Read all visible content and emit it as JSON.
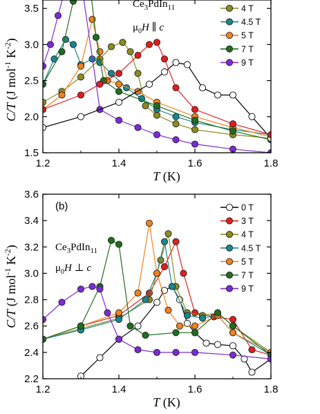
{
  "chart_data": [
    {
      "type": "scatter",
      "panel_label": "",
      "xlabel": "T (K)",
      "ylabel": "C/T (J mol-1 K-2)",
      "xlim": [
        1.2,
        1.8
      ],
      "ylim": [
        1.5,
        4.0
      ],
      "xticks": [
        "1.2",
        "1.4",
        "1.6",
        "1.8"
      ],
      "yticks": [
        "1.5",
        "2.0",
        "2.5",
        "3.0",
        "3.5",
        "4.0"
      ],
      "annotation": {
        "compound": "Ce3PdIn11",
        "field": "μ0H ∥ c"
      },
      "legend_position": "top-right",
      "series": [
        {
          "name": "4 T",
          "color": "#8c8c1e",
          "x": [
            1.2,
            1.25,
            1.3,
            1.35,
            1.38,
            1.41,
            1.43,
            1.45,
            1.47,
            1.5,
            1.55,
            1.6,
            1.7,
            1.8
          ],
          "y": [
            2.2,
            2.35,
            2.55,
            2.8,
            2.97,
            3.03,
            2.9,
            2.6,
            2.15,
            2.02,
            1.9,
            1.82,
            1.75,
            1.7
          ]
        },
        {
          "name": "4.5 T",
          "color": "#16878e",
          "x": [
            1.2,
            1.23,
            1.26,
            1.28,
            1.3,
            1.33,
            1.35,
            1.38,
            1.42,
            1.46,
            1.5,
            1.55,
            1.6,
            1.7,
            1.8
          ],
          "y": [
            2.45,
            2.8,
            3.07,
            3.0,
            2.72,
            2.8,
            2.75,
            2.6,
            2.4,
            2.25,
            2.1,
            2.0,
            1.92,
            1.82,
            1.75
          ]
        },
        {
          "name": "5 T",
          "color": "#f0821e",
          "x": [
            1.2,
            1.25,
            1.3,
            1.33,
            1.35,
            1.37,
            1.4,
            1.45,
            1.5,
            1.6,
            1.7,
            1.8
          ],
          "y": [
            2.1,
            2.3,
            2.7,
            3.35,
            2.9,
            2.5,
            2.45,
            2.35,
            2.2,
            2.0,
            1.85,
            1.72
          ]
        },
        {
          "name": "7 T",
          "color": "#1e6e1e",
          "x": [
            1.2,
            1.25,
            1.28,
            1.3,
            1.32,
            1.34,
            1.36,
            1.4,
            1.5,
            1.6,
            1.7,
            1.8
          ],
          "y": [
            2.45,
            2.9,
            3.6,
            4.0,
            4.0,
            3.1,
            2.5,
            2.35,
            2.15,
            1.95,
            1.8,
            1.68
          ]
        },
        {
          "name": "9 T",
          "color": "#7b2ad6",
          "x": [
            1.2,
            1.22,
            1.24,
            1.26,
            1.28,
            1.3,
            1.35,
            1.4,
            1.45,
            1.5,
            1.55,
            1.6,
            1.7,
            1.8
          ],
          "y": [
            2.7,
            3.0,
            3.4,
            3.8,
            4.0,
            3.9,
            2.1,
            1.95,
            1.85,
            1.75,
            1.68,
            1.62,
            1.55,
            1.5
          ]
        },
        {
          "name": "",
          "color": "#000000",
          "hollow": true,
          "x": [
            1.2,
            1.3,
            1.4,
            1.48,
            1.52,
            1.55,
            1.58,
            1.62,
            1.66,
            1.7,
            1.75,
            1.8
          ],
          "y": [
            1.85,
            2.0,
            2.2,
            2.45,
            2.62,
            2.75,
            2.72,
            2.4,
            2.3,
            2.3,
            2.0,
            1.7
          ]
        },
        {
          "name": "",
          "color": "#e01e1e",
          "x": [
            1.2,
            1.3,
            1.35,
            1.4,
            1.45,
            1.48,
            1.5,
            1.52,
            1.55,
            1.6,
            1.7,
            1.8
          ],
          "y": [
            2.1,
            2.3,
            2.45,
            2.6,
            2.85,
            3.0,
            3.03,
            2.8,
            2.4,
            2.1,
            1.9,
            1.75
          ]
        }
      ]
    },
    {
      "type": "scatter",
      "panel_label": "(b)",
      "xlabel": "T (K)",
      "ylabel": "C/T (J mol-1 K-2)",
      "xlim": [
        1.2,
        1.8
      ],
      "ylim": [
        2.2,
        3.6
      ],
      "xticks": [
        "1.2",
        "1.4",
        "1.6",
        "1.8"
      ],
      "yticks": [
        "2.2",
        "2.4",
        "2.6",
        "2.8",
        "3.0",
        "3.2",
        "3.4",
        "3.6"
      ],
      "annotation": {
        "compound": "Ce3PdIn11",
        "field": "μ0H ⊥ c"
      },
      "legend_position": "top-right",
      "series": [
        {
          "name": "0 T",
          "color": "#000000",
          "hollow": true,
          "x": [
            1.3,
            1.35,
            1.4,
            1.45,
            1.5,
            1.52,
            1.54,
            1.56,
            1.58,
            1.6,
            1.63,
            1.66,
            1.7,
            1.73,
            1.75,
            1.8
          ],
          "y": [
            2.22,
            2.36,
            2.5,
            2.6,
            2.78,
            2.87,
            2.9,
            2.8,
            2.62,
            2.55,
            2.47,
            2.46,
            2.45,
            2.35,
            2.25,
            2.35
          ]
        },
        {
          "name": "3 T",
          "color": "#e01e1e",
          "x": [
            1.2,
            1.3,
            1.4,
            1.48,
            1.52,
            1.55,
            1.57,
            1.6,
            1.65,
            1.7,
            1.75,
            1.8
          ],
          "y": [
            2.5,
            2.6,
            2.68,
            2.85,
            3.05,
            3.24,
            3.0,
            2.7,
            2.67,
            2.65,
            2.42,
            2.38
          ]
        },
        {
          "name": "4 T",
          "color": "#8c8c1e",
          "x": [
            1.2,
            1.3,
            1.4,
            1.48,
            1.51,
            1.53,
            1.55,
            1.58,
            1.62,
            1.66,
            1.7,
            1.8
          ],
          "y": [
            2.5,
            2.58,
            2.66,
            2.8,
            3.1,
            3.3,
            2.9,
            2.7,
            2.68,
            2.7,
            2.6,
            2.4
          ]
        },
        {
          "name": "4.5 T",
          "color": "#16878e",
          "x": [
            1.2,
            1.3,
            1.4,
            1.47,
            1.5,
            1.52,
            1.54,
            1.58,
            1.62,
            1.66,
            1.7,
            1.8
          ],
          "y": [
            2.5,
            2.57,
            2.65,
            2.8,
            3.0,
            3.24,
            2.9,
            2.68,
            2.66,
            2.68,
            2.55,
            2.38
          ]
        },
        {
          "name": "5 T",
          "color": "#f0821e",
          "x": [
            1.2,
            1.3,
            1.4,
            1.45,
            1.48,
            1.5,
            1.53,
            1.56,
            1.6,
            1.66,
            1.7,
            1.8
          ],
          "y": [
            2.5,
            2.6,
            2.7,
            2.85,
            3.38,
            3.0,
            2.72,
            2.6,
            2.6,
            2.68,
            2.55,
            2.4
          ]
        },
        {
          "name": "7 T",
          "color": "#1e6e1e",
          "x": [
            1.2,
            1.3,
            1.35,
            1.38,
            1.4,
            1.43,
            1.47,
            1.55,
            1.6,
            1.66,
            1.7,
            1.8
          ],
          "y": [
            2.5,
            2.6,
            2.9,
            3.25,
            3.22,
            2.6,
            2.53,
            2.55,
            2.55,
            2.7,
            2.6,
            2.38
          ]
        },
        {
          "name": "9 T",
          "color": "#7b2ad6",
          "x": [
            1.2,
            1.25,
            1.3,
            1.33,
            1.35,
            1.37,
            1.4,
            1.45,
            1.5,
            1.55,
            1.6,
            1.7,
            1.8
          ],
          "y": [
            2.65,
            2.78,
            2.88,
            2.9,
            2.88,
            2.7,
            2.5,
            2.42,
            2.4,
            2.4,
            2.4,
            2.38,
            2.35
          ]
        }
      ]
    }
  ]
}
